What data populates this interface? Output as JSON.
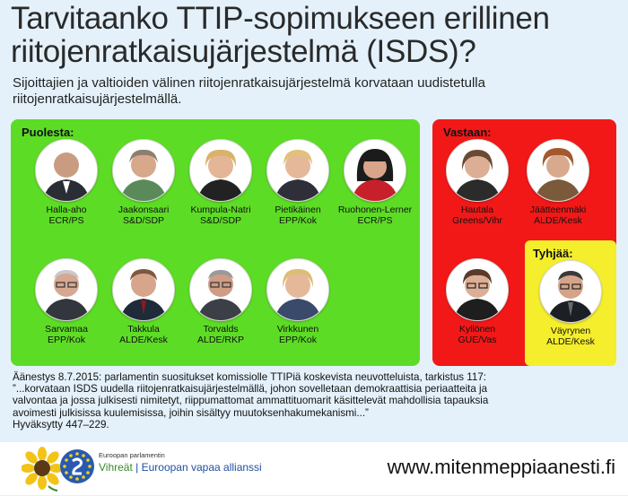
{
  "header": {
    "title": "Tarvitaanko TTIP-sopimukseen erillinen riitojenratkaisujärjestelmä (ISDS)?",
    "subtitle": "Sijoittajien ja valtioiden välinen riitojenratkaisujärjestelmä korvataan uudistetulla riitojenratkaisujärjestelmällä."
  },
  "groups": {
    "for": {
      "label": "Puolesta:",
      "color": "#5ddc25",
      "members": [
        {
          "name": "Halla-aho",
          "party": "ECR/PS"
        },
        {
          "name": "Jaakonsaari",
          "party": "S&D/SDP"
        },
        {
          "name": "Kumpula-Natri",
          "party": "S&D/SDP"
        },
        {
          "name": "Pietikäinen",
          "party": "EPP/Kok"
        },
        {
          "name": "Ruohonen-Lerner",
          "party": "ECR/PS"
        },
        {
          "name": "Sarvamaa",
          "party": "EPP/Kok"
        },
        {
          "name": "Takkula",
          "party": "ALDE/Kesk"
        },
        {
          "name": "Torvalds",
          "party": "ALDE/RKP"
        },
        {
          "name": "Virkkunen",
          "party": "EPP/Kok"
        }
      ]
    },
    "against": {
      "label": "Vastaan:",
      "color": "#f21818",
      "members": [
        {
          "name": "Hautala",
          "party": "Greens/Vihr"
        },
        {
          "name": "Jäätteenmäki",
          "party": "ALDE/Kesk"
        },
        {
          "name": "Kyllönen",
          "party": "GUE/Vas"
        }
      ]
    },
    "abstain": {
      "label": "Tyhjää:",
      "color": "#f4ee2c",
      "members": [
        {
          "name": "Väyrynen",
          "party": "ALDE/Kesk"
        }
      ]
    }
  },
  "quote": {
    "line1": "Äänestys 8.7.2015: parlamentin suositukset komissiolle TTIPiä koskevista neuvotteluista, tarkistus 117:",
    "line2": "”...korvataan ISDS uudella riitojenratkaisujärjestelmällä, johon sovelletaan demokraattisia periaatteita ja",
    "line3": "valvontaa ja jossa julkisesti nimitetyt, riippumattomat ammattituomarit käsittelevät mahdollisia tapauksia",
    "line4": "avoimesti julkisissa kuulemisissa, joihin sisältyy muutoksenhakumekanismi...”",
    "line5": "Hyväksytty 447–229."
  },
  "footer": {
    "org_small": "Euroopan parlamentin",
    "org_greens": "Vihreät",
    "org_separator": " | ",
    "org_efa": "Euroopan vapaa allianssi",
    "website": "www.mitenmeppiaanesti.fi"
  }
}
